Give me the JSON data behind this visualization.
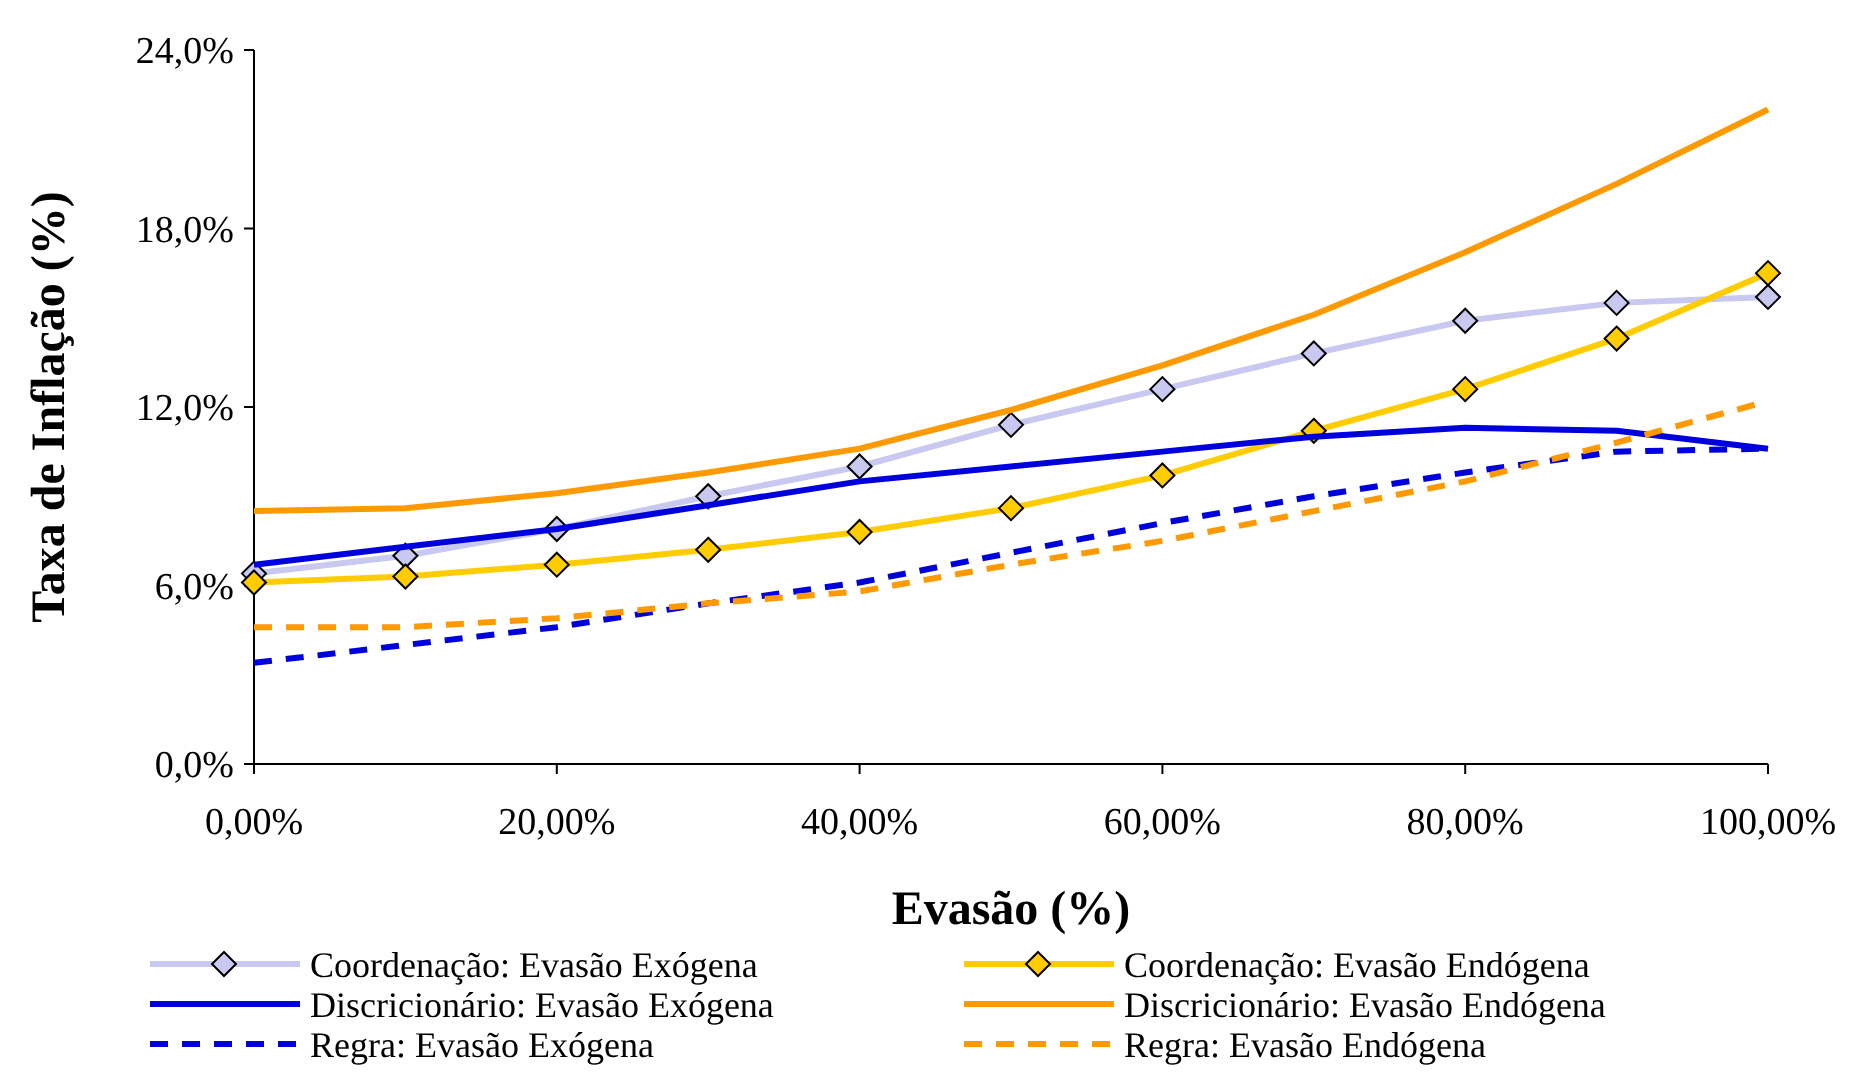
{
  "chart_data": {
    "type": "line",
    "xlabel": "Evasão (%)",
    "ylabel": "Taxa de Inflação (%)",
    "x": [
      0,
      10,
      20,
      30,
      40,
      50,
      60,
      70,
      80,
      90,
      100
    ],
    "xlim": [
      0,
      100
    ],
    "xticks": [
      {
        "value": 0,
        "label": "0,00%"
      },
      {
        "value": 20,
        "label": "20,00%"
      },
      {
        "value": 40,
        "label": "40,00%"
      },
      {
        "value": 60,
        "label": "60,00%"
      },
      {
        "value": 80,
        "label": "80,00%"
      },
      {
        "value": 100,
        "label": "100,00%"
      }
    ],
    "ylim": [
      0,
      24
    ],
    "yticks": [
      {
        "value": 0,
        "label": "0,0%"
      },
      {
        "value": 6,
        "label": "6,0%"
      },
      {
        "value": 12,
        "label": "12,0%"
      },
      {
        "value": 18,
        "label": "18,0%"
      },
      {
        "value": 24,
        "label": "24,0%"
      }
    ],
    "grid": false,
    "legend": "bottom",
    "series": [
      {
        "name": "Coordenação: Evasão Exógena",
        "color": "#c8c8f0",
        "marker": "diamond",
        "line_style": "solid",
        "values": [
          6.4,
          7.0,
          7.9,
          9.0,
          10.0,
          11.4,
          12.6,
          13.8,
          14.9,
          15.5,
          15.7
        ]
      },
      {
        "name": "Coordenação: Evasão Endógena",
        "color": "#ffcc00",
        "marker": "diamond",
        "line_style": "solid",
        "values": [
          6.1,
          6.3,
          6.7,
          7.2,
          7.8,
          8.6,
          9.7,
          11.2,
          12.6,
          14.3,
          16.5
        ]
      },
      {
        "name": "Discricionário: Evasão Exógena",
        "color": "#0000dd",
        "marker": "none",
        "line_style": "solid",
        "values": [
          6.7,
          7.3,
          7.9,
          8.7,
          9.5,
          10.0,
          10.5,
          11.0,
          11.3,
          11.2,
          10.6
        ]
      },
      {
        "name": "Discricionário: Evasão Endógena",
        "color": "#ff9900",
        "marker": "none",
        "line_style": "solid",
        "values": [
          8.5,
          8.6,
          9.1,
          9.8,
          10.6,
          11.9,
          13.4,
          15.1,
          17.2,
          19.5,
          22.0
        ]
      },
      {
        "name": "Regra: Evasão Exógena",
        "color": "#0000dd",
        "marker": "none",
        "line_style": "dashed",
        "values": [
          3.4,
          4.0,
          4.6,
          5.4,
          6.1,
          7.1,
          8.1,
          9.0,
          9.8,
          10.5,
          10.6
        ]
      },
      {
        "name": "Regra: Evasão Endógena",
        "color": "#ff9900",
        "marker": "none",
        "line_style": "dashed",
        "values": [
          4.6,
          4.6,
          4.9,
          5.4,
          5.8,
          6.7,
          7.5,
          8.5,
          9.5,
          10.8,
          12.2
        ]
      }
    ]
  }
}
